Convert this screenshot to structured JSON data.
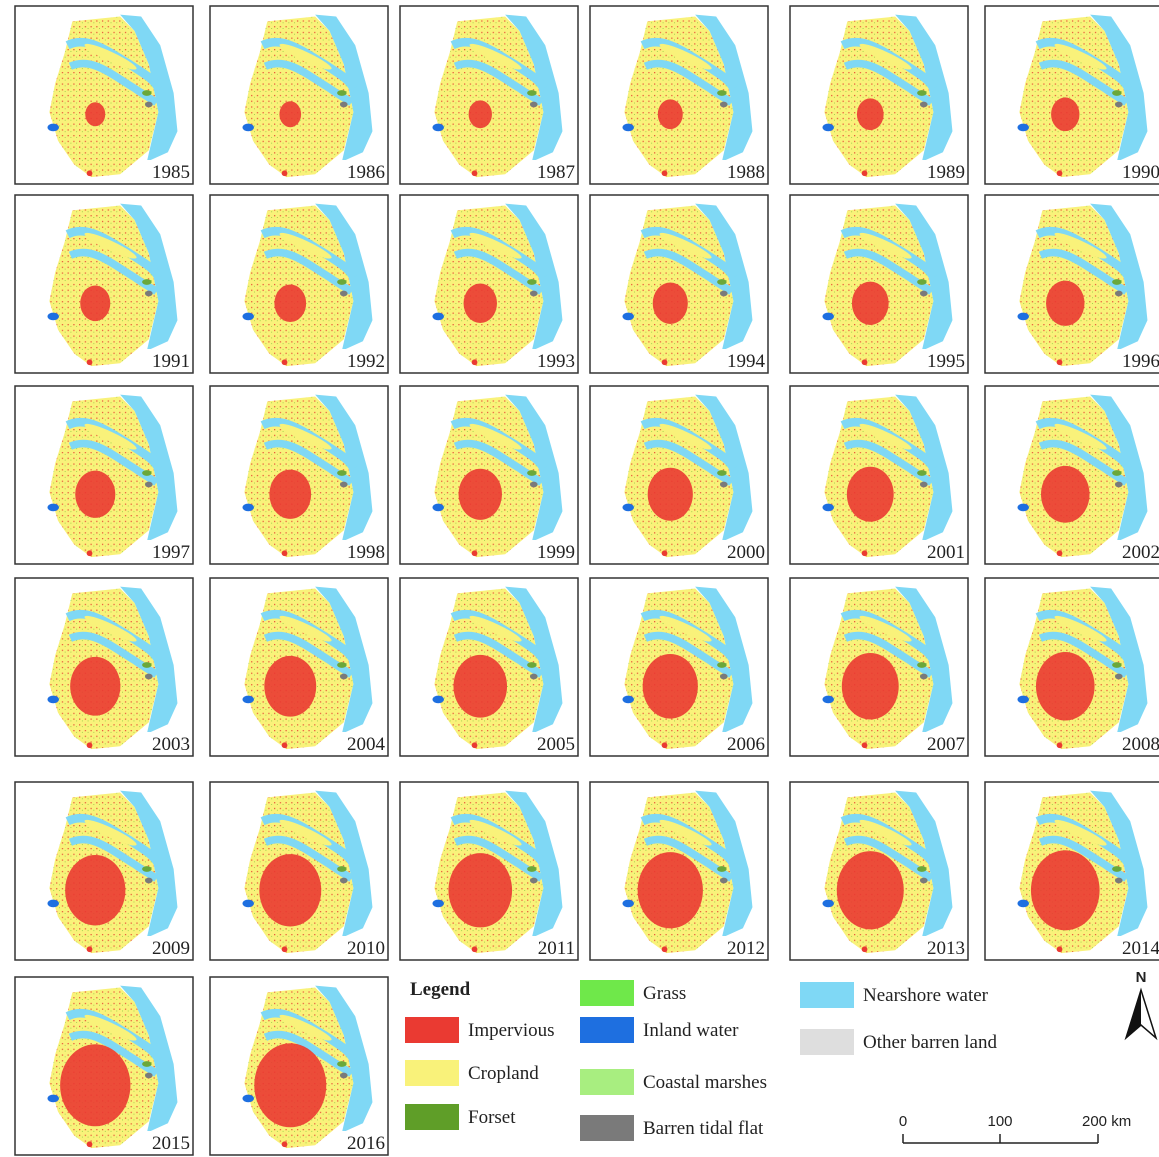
{
  "years": [
    "1985",
    "1986",
    "1987",
    "1988",
    "1989",
    "1990",
    "1991",
    "1992",
    "1993",
    "1994",
    "1995",
    "1996",
    "1997",
    "1998",
    "1999",
    "2000",
    "2001",
    "2002",
    "2003",
    "2004",
    "2005",
    "2006",
    "2007",
    "2008",
    "2009",
    "2010",
    "2011",
    "2012",
    "2013",
    "2014",
    "2015",
    "2016"
  ],
  "legend": {
    "title": "Legend",
    "items": [
      {
        "label": "Impervious",
        "color": "#ea3a32"
      },
      {
        "label": "Cropland",
        "color": "#f9f27a"
      },
      {
        "label": "Forset",
        "color": "#5f9e28"
      },
      {
        "label": "Grass",
        "color": "#6fe84a"
      },
      {
        "label": "Inland water",
        "color": "#1e6fe0"
      },
      {
        "label": "Coastal marshes",
        "color": "#a8ee80"
      },
      {
        "label": "Barren tidal flat",
        "color": "#7a7a7a"
      },
      {
        "label": "Nearshore water",
        "color": "#7fd8f5"
      },
      {
        "label": "Other barren land",
        "color": "#dedede"
      }
    ]
  },
  "scale_bar": {
    "labels": [
      "0",
      "100",
      "200 km"
    ]
  },
  "north": "N"
}
